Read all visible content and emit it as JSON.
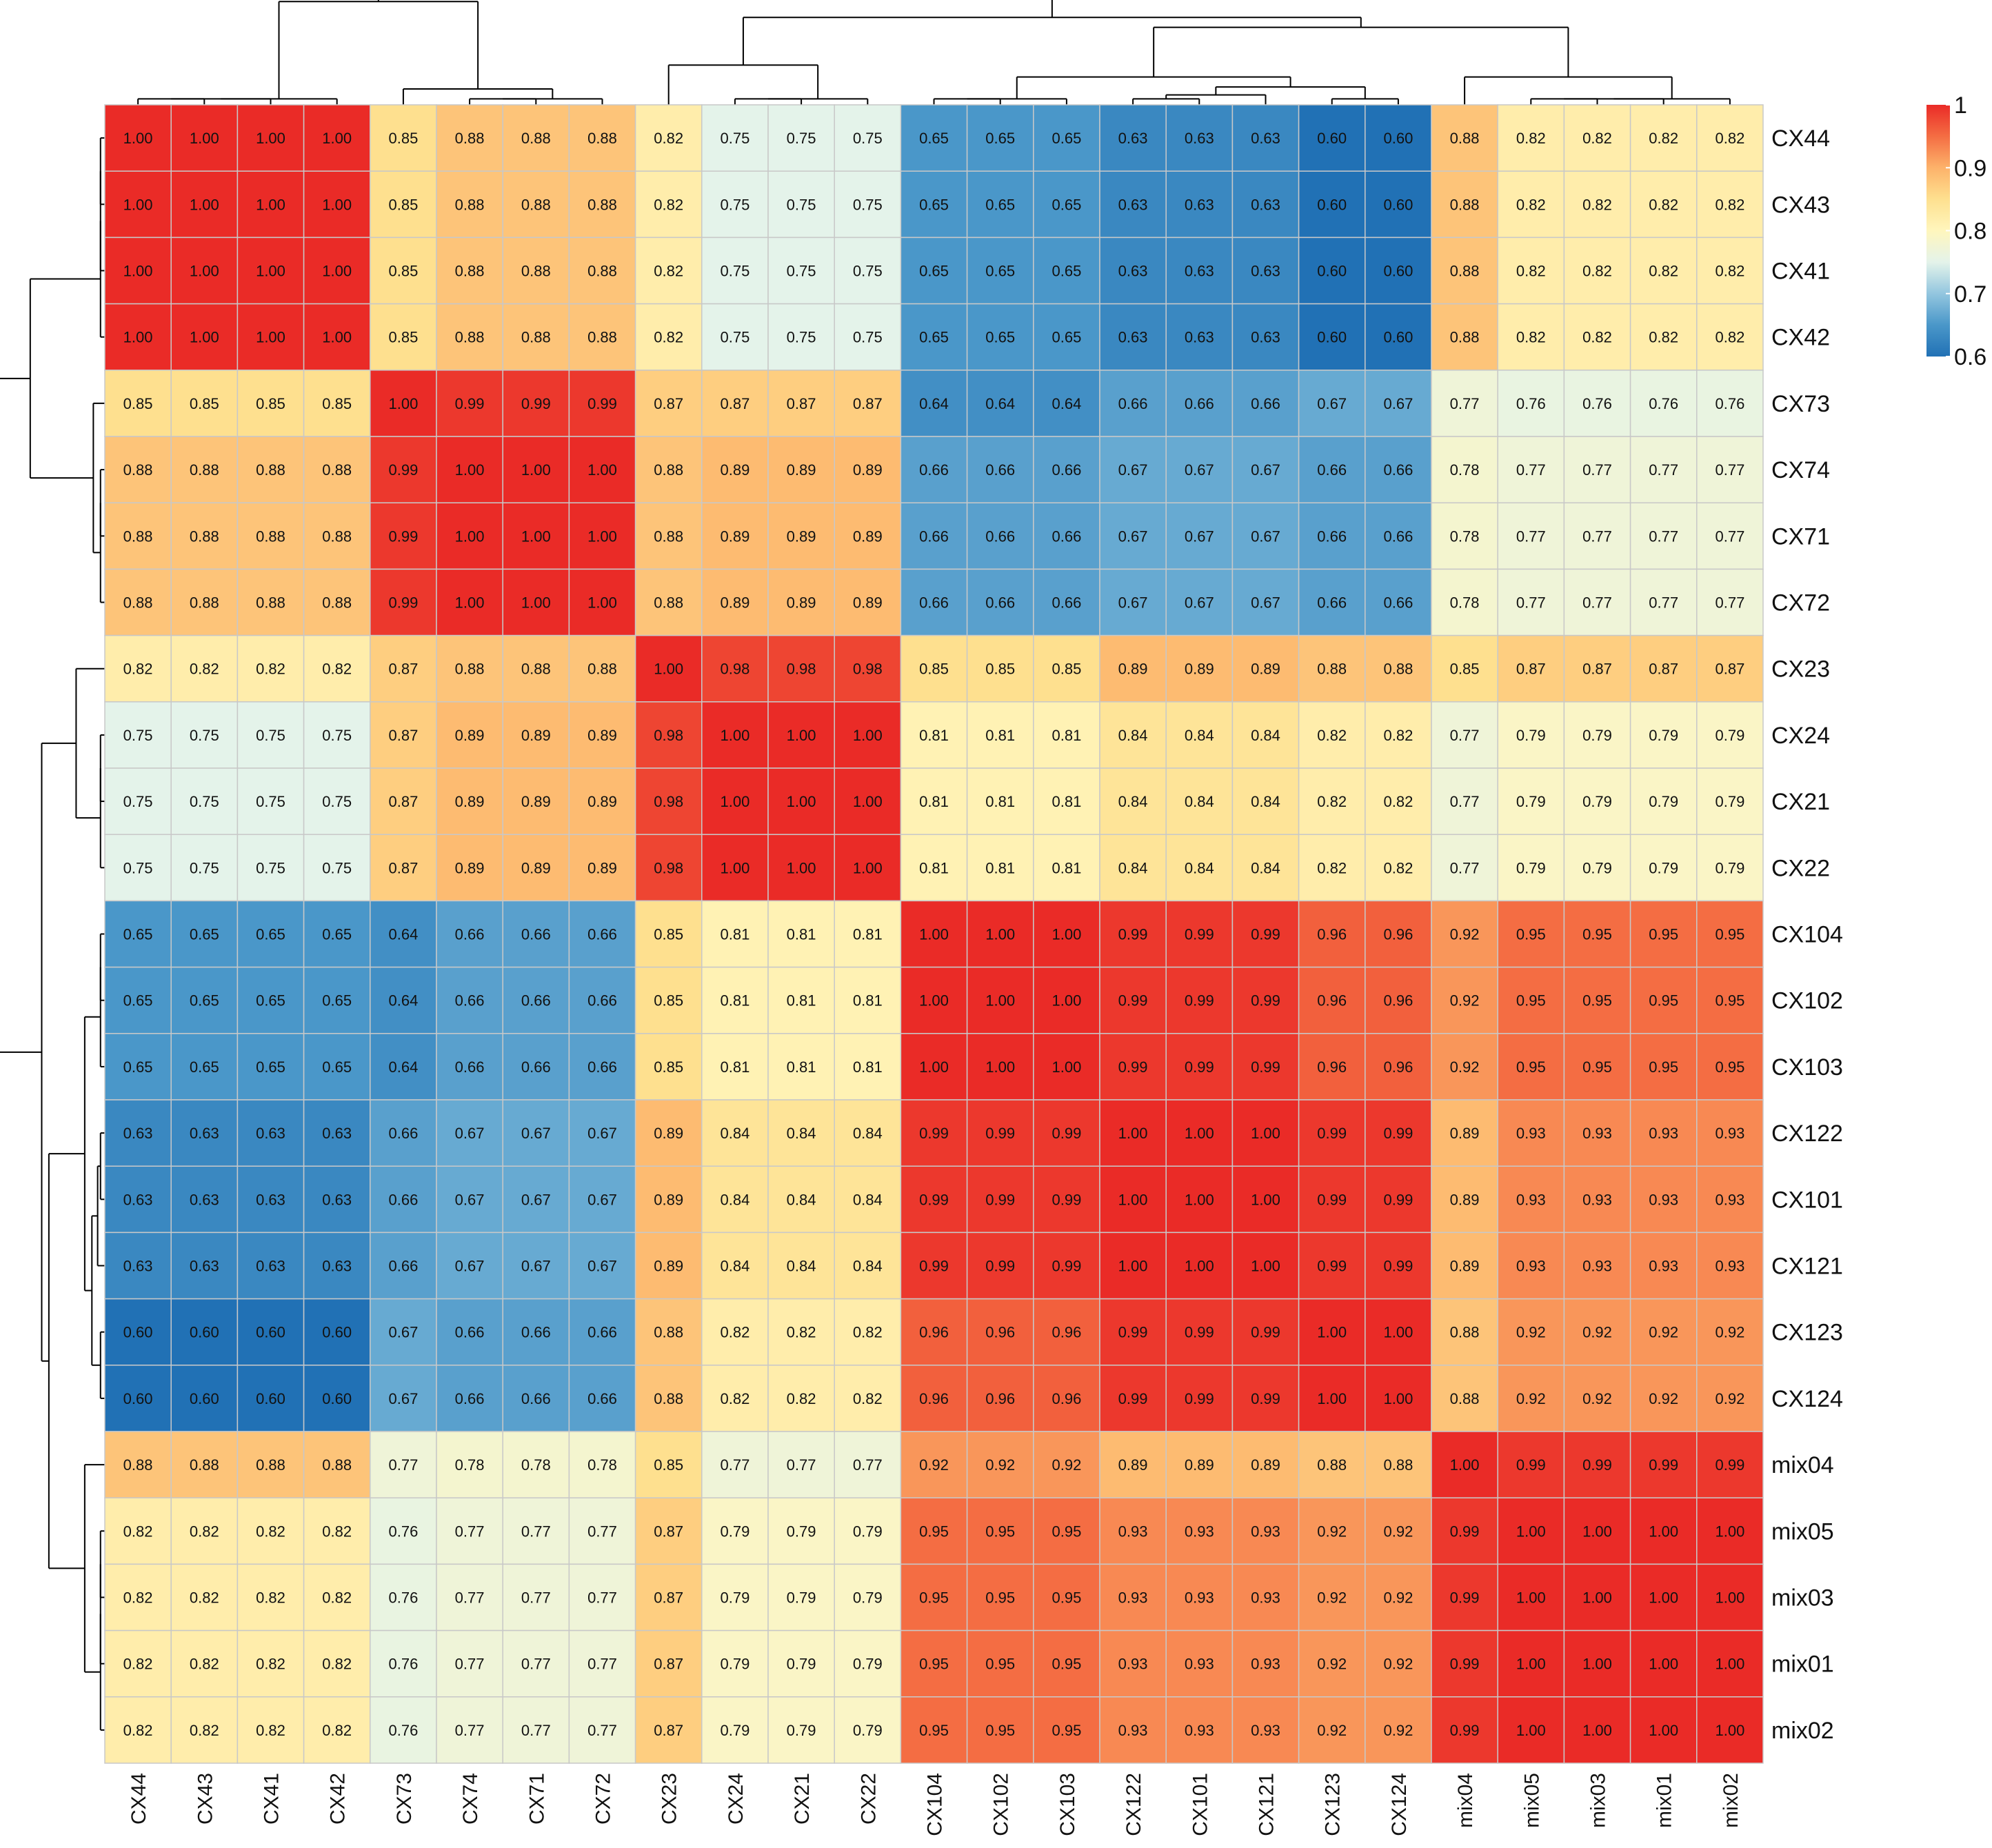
{
  "chart_data": {
    "type": "heatmap",
    "row_labels": [
      "CX44",
      "CX43",
      "CX41",
      "CX42",
      "CX73",
      "CX74",
      "CX71",
      "CX72",
      "CX23",
      "CX24",
      "CX21",
      "CX22",
      "CX104",
      "CX102",
      "CX103",
      "CX122",
      "CX101",
      "CX121",
      "CX123",
      "CX124",
      "mix04",
      "mix05",
      "mix03",
      "mix01",
      "mix02"
    ],
    "col_labels": [
      "CX44",
      "CX43",
      "CX41",
      "CX42",
      "CX73",
      "CX74",
      "CX71",
      "CX72",
      "CX23",
      "CX24",
      "CX21",
      "CX22",
      "CX104",
      "CX102",
      "CX103",
      "CX122",
      "CX101",
      "CX121",
      "CX123",
      "CX124",
      "mix04",
      "mix05",
      "mix03",
      "mix01",
      "mix02"
    ],
    "values": [
      [
        "1.00",
        "1.00",
        "1.00",
        "1.00",
        "0.85",
        "0.88",
        "0.88",
        "0.88",
        "0.82",
        "0.75",
        "0.75",
        "0.75",
        "0.65",
        "0.65",
        "0.65",
        "0.63",
        "0.63",
        "0.63",
        "0.60",
        "0.60",
        "0.88",
        "0.82",
        "0.82",
        "0.82",
        "0.82"
      ],
      [
        "1.00",
        "1.00",
        "1.00",
        "1.00",
        "0.85",
        "0.88",
        "0.88",
        "0.88",
        "0.82",
        "0.75",
        "0.75",
        "0.75",
        "0.65",
        "0.65",
        "0.65",
        "0.63",
        "0.63",
        "0.63",
        "0.60",
        "0.60",
        "0.88",
        "0.82",
        "0.82",
        "0.82",
        "0.82"
      ],
      [
        "1.00",
        "1.00",
        "1.00",
        "1.00",
        "0.85",
        "0.88",
        "0.88",
        "0.88",
        "0.82",
        "0.75",
        "0.75",
        "0.75",
        "0.65",
        "0.65",
        "0.65",
        "0.63",
        "0.63",
        "0.63",
        "0.60",
        "0.60",
        "0.88",
        "0.82",
        "0.82",
        "0.82",
        "0.82"
      ],
      [
        "1.00",
        "1.00",
        "1.00",
        "1.00",
        "0.85",
        "0.88",
        "0.88",
        "0.88",
        "0.82",
        "0.75",
        "0.75",
        "0.75",
        "0.65",
        "0.65",
        "0.65",
        "0.63",
        "0.63",
        "0.63",
        "0.60",
        "0.60",
        "0.88",
        "0.82",
        "0.82",
        "0.82",
        "0.82"
      ],
      [
        "0.85",
        "0.85",
        "0.85",
        "0.85",
        "1.00",
        "0.99",
        "0.99",
        "0.99",
        "0.87",
        "0.87",
        "0.87",
        "0.87",
        "0.64",
        "0.64",
        "0.64",
        "0.66",
        "0.66",
        "0.66",
        "0.67",
        "0.67",
        "0.77",
        "0.76",
        "0.76",
        "0.76",
        "0.76"
      ],
      [
        "0.88",
        "0.88",
        "0.88",
        "0.88",
        "0.99",
        "1.00",
        "1.00",
        "1.00",
        "0.88",
        "0.89",
        "0.89",
        "0.89",
        "0.66",
        "0.66",
        "0.66",
        "0.67",
        "0.67",
        "0.67",
        "0.66",
        "0.66",
        "0.78",
        "0.77",
        "0.77",
        "0.77",
        "0.77"
      ],
      [
        "0.88",
        "0.88",
        "0.88",
        "0.88",
        "0.99",
        "1.00",
        "1.00",
        "1.00",
        "0.88",
        "0.89",
        "0.89",
        "0.89",
        "0.66",
        "0.66",
        "0.66",
        "0.67",
        "0.67",
        "0.67",
        "0.66",
        "0.66",
        "0.78",
        "0.77",
        "0.77",
        "0.77",
        "0.77"
      ],
      [
        "0.88",
        "0.88",
        "0.88",
        "0.88",
        "0.99",
        "1.00",
        "1.00",
        "1.00",
        "0.88",
        "0.89",
        "0.89",
        "0.89",
        "0.66",
        "0.66",
        "0.66",
        "0.67",
        "0.67",
        "0.67",
        "0.66",
        "0.66",
        "0.78",
        "0.77",
        "0.77",
        "0.77",
        "0.77"
      ],
      [
        "0.82",
        "0.82",
        "0.82",
        "0.82",
        "0.87",
        "0.88",
        "0.88",
        "0.88",
        "1.00",
        "0.98",
        "0.98",
        "0.98",
        "0.85",
        "0.85",
        "0.85",
        "0.89",
        "0.89",
        "0.89",
        "0.88",
        "0.88",
        "0.85",
        "0.87",
        "0.87",
        "0.87",
        "0.87"
      ],
      [
        "0.75",
        "0.75",
        "0.75",
        "0.75",
        "0.87",
        "0.89",
        "0.89",
        "0.89",
        "0.98",
        "1.00",
        "1.00",
        "1.00",
        "0.81",
        "0.81",
        "0.81",
        "0.84",
        "0.84",
        "0.84",
        "0.82",
        "0.82",
        "0.77",
        "0.79",
        "0.79",
        "0.79",
        "0.79"
      ],
      [
        "0.75",
        "0.75",
        "0.75",
        "0.75",
        "0.87",
        "0.89",
        "0.89",
        "0.89",
        "0.98",
        "1.00",
        "1.00",
        "1.00",
        "0.81",
        "0.81",
        "0.81",
        "0.84",
        "0.84",
        "0.84",
        "0.82",
        "0.82",
        "0.77",
        "0.79",
        "0.79",
        "0.79",
        "0.79"
      ],
      [
        "0.75",
        "0.75",
        "0.75",
        "0.75",
        "0.87",
        "0.89",
        "0.89",
        "0.89",
        "0.98",
        "1.00",
        "1.00",
        "1.00",
        "0.81",
        "0.81",
        "0.81",
        "0.84",
        "0.84",
        "0.84",
        "0.82",
        "0.82",
        "0.77",
        "0.79",
        "0.79",
        "0.79",
        "0.79"
      ],
      [
        "0.65",
        "0.65",
        "0.65",
        "0.65",
        "0.64",
        "0.66",
        "0.66",
        "0.66",
        "0.85",
        "0.81",
        "0.81",
        "0.81",
        "1.00",
        "1.00",
        "1.00",
        "0.99",
        "0.99",
        "0.99",
        "0.96",
        "0.96",
        "0.92",
        "0.95",
        "0.95",
        "0.95",
        "0.95"
      ],
      [
        "0.65",
        "0.65",
        "0.65",
        "0.65",
        "0.64",
        "0.66",
        "0.66",
        "0.66",
        "0.85",
        "0.81",
        "0.81",
        "0.81",
        "1.00",
        "1.00",
        "1.00",
        "0.99",
        "0.99",
        "0.99",
        "0.96",
        "0.96",
        "0.92",
        "0.95",
        "0.95",
        "0.95",
        "0.95"
      ],
      [
        "0.65",
        "0.65",
        "0.65",
        "0.65",
        "0.64",
        "0.66",
        "0.66",
        "0.66",
        "0.85",
        "0.81",
        "0.81",
        "0.81",
        "1.00",
        "1.00",
        "1.00",
        "0.99",
        "0.99",
        "0.99",
        "0.96",
        "0.96",
        "0.92",
        "0.95",
        "0.95",
        "0.95",
        "0.95"
      ],
      [
        "0.63",
        "0.63",
        "0.63",
        "0.63",
        "0.66",
        "0.67",
        "0.67",
        "0.67",
        "0.89",
        "0.84",
        "0.84",
        "0.84",
        "0.99",
        "0.99",
        "0.99",
        "1.00",
        "1.00",
        "1.00",
        "0.99",
        "0.99",
        "0.89",
        "0.93",
        "0.93",
        "0.93",
        "0.93"
      ],
      [
        "0.63",
        "0.63",
        "0.63",
        "0.63",
        "0.66",
        "0.67",
        "0.67",
        "0.67",
        "0.89",
        "0.84",
        "0.84",
        "0.84",
        "0.99",
        "0.99",
        "0.99",
        "1.00",
        "1.00",
        "1.00",
        "0.99",
        "0.99",
        "0.89",
        "0.93",
        "0.93",
        "0.93",
        "0.93"
      ],
      [
        "0.63",
        "0.63",
        "0.63",
        "0.63",
        "0.66",
        "0.67",
        "0.67",
        "0.67",
        "0.89",
        "0.84",
        "0.84",
        "0.84",
        "0.99",
        "0.99",
        "0.99",
        "1.00",
        "1.00",
        "1.00",
        "0.99",
        "0.99",
        "0.89",
        "0.93",
        "0.93",
        "0.93",
        "0.93"
      ],
      [
        "0.60",
        "0.60",
        "0.60",
        "0.60",
        "0.67",
        "0.66",
        "0.66",
        "0.66",
        "0.88",
        "0.82",
        "0.82",
        "0.82",
        "0.96",
        "0.96",
        "0.96",
        "0.99",
        "0.99",
        "0.99",
        "1.00",
        "1.00",
        "0.88",
        "0.92",
        "0.92",
        "0.92",
        "0.92"
      ],
      [
        "0.60",
        "0.60",
        "0.60",
        "0.60",
        "0.67",
        "0.66",
        "0.66",
        "0.66",
        "0.88",
        "0.82",
        "0.82",
        "0.82",
        "0.96",
        "0.96",
        "0.96",
        "0.99",
        "0.99",
        "0.99",
        "1.00",
        "1.00",
        "0.88",
        "0.92",
        "0.92",
        "0.92",
        "0.92"
      ],
      [
        "0.88",
        "0.88",
        "0.88",
        "0.88",
        "0.77",
        "0.78",
        "0.78",
        "0.78",
        "0.85",
        "0.77",
        "0.77",
        "0.77",
        "0.92",
        "0.92",
        "0.92",
        "0.89",
        "0.89",
        "0.89",
        "0.88",
        "0.88",
        "1.00",
        "0.99",
        "0.99",
        "0.99",
        "0.99"
      ],
      [
        "0.82",
        "0.82",
        "0.82",
        "0.82",
        "0.76",
        "0.77",
        "0.77",
        "0.77",
        "0.87",
        "0.79",
        "0.79",
        "0.79",
        "0.95",
        "0.95",
        "0.95",
        "0.93",
        "0.93",
        "0.93",
        "0.92",
        "0.92",
        "0.99",
        "1.00",
        "1.00",
        "1.00",
        "1.00"
      ],
      [
        "0.82",
        "0.82",
        "0.82",
        "0.82",
        "0.76",
        "0.77",
        "0.77",
        "0.77",
        "0.87",
        "0.79",
        "0.79",
        "0.79",
        "0.95",
        "0.95",
        "0.95",
        "0.93",
        "0.93",
        "0.93",
        "0.92",
        "0.92",
        "0.99",
        "1.00",
        "1.00",
        "1.00",
        "1.00"
      ],
      [
        "0.82",
        "0.82",
        "0.82",
        "0.82",
        "0.76",
        "0.77",
        "0.77",
        "0.77",
        "0.87",
        "0.79",
        "0.79",
        "0.79",
        "0.95",
        "0.95",
        "0.95",
        "0.93",
        "0.93",
        "0.93",
        "0.92",
        "0.92",
        "0.99",
        "1.00",
        "1.00",
        "1.00",
        "1.00"
      ],
      [
        "0.82",
        "0.82",
        "0.82",
        "0.82",
        "0.76",
        "0.77",
        "0.77",
        "0.77",
        "0.87",
        "0.79",
        "0.79",
        "0.79",
        "0.95",
        "0.95",
        "0.95",
        "0.93",
        "0.93",
        "0.93",
        "0.92",
        "0.92",
        "0.99",
        "1.00",
        "1.00",
        "1.00",
        "1.00"
      ]
    ],
    "color_scale": {
      "min": 0.6,
      "max": 1,
      "ticks": [
        "1",
        "0.9",
        "0.8",
        "0.7",
        "0.6"
      ],
      "stops": [
        {
          "value": 0.6,
          "color": "#2171b5"
        },
        {
          "value": 0.65,
          "color": "#4a97c9"
        },
        {
          "value": 0.7,
          "color": "#93c6df"
        },
        {
          "value": 0.75,
          "color": "#e4f3ea"
        },
        {
          "value": 0.8,
          "color": "#fff6bd"
        },
        {
          "value": 0.85,
          "color": "#fee08f"
        },
        {
          "value": 0.9,
          "color": "#fdb26a"
        },
        {
          "value": 0.95,
          "color": "#f46d43"
        },
        {
          "value": 1.0,
          "color": "#ea2b27"
        }
      ]
    },
    "dendrogram": "hierarchical clustering tree on rows (left) and columns (top)",
    "grid_color": "#c8c8c8"
  }
}
